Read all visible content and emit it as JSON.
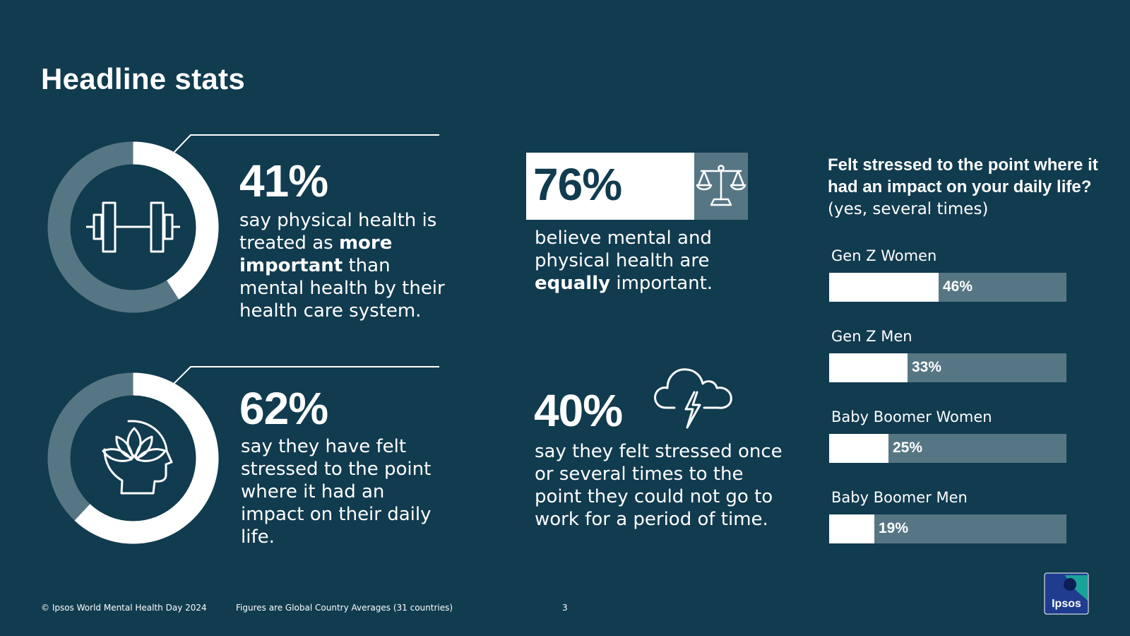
{
  "title": "Headline stats",
  "colors": {
    "background": "#113b4f",
    "accent": "#577684",
    "foreground": "#ffffff"
  },
  "stats": [
    {
      "value": "41%",
      "fraction": 0.41,
      "icon": "dumbbell-icon",
      "text_parts": [
        "say physical health is treated as ",
        "more important",
        " than mental health by their health care system."
      ]
    },
    {
      "value": "62%",
      "fraction": 0.62,
      "icon": "lotus-head-icon",
      "text_parts": [
        "say they have felt stressed to the point where it had an impact on their daily life."
      ]
    },
    {
      "value": "76%",
      "icon": "scales-icon",
      "text_parts": [
        "believe mental and physical health are ",
        "equally",
        " important."
      ]
    },
    {
      "value": "40%",
      "icon": "storm-cloud-icon",
      "text_parts": [
        "say they felt stressed once or several times to the point they could not go to work for a period of time."
      ]
    }
  ],
  "bar_chart": {
    "heading_bold": "Felt stressed to the point where it had an impact on your daily life?",
    "heading_light": "(yes, several times)"
  },
  "chart_data": [
    {
      "type": "pie",
      "categories": [
        "say physical health is treated as more important",
        "other"
      ],
      "values": [
        41,
        59
      ]
    },
    {
      "type": "pie",
      "categories": [
        "say they have felt stressed",
        "other"
      ],
      "values": [
        62,
        38
      ]
    },
    {
      "type": "bar",
      "title": "Felt stressed to the point where it had an impact on your daily life? (yes, several times)",
      "categories": [
        "Gen Z Women",
        "Gen Z Men",
        "Baby Boomer Women",
        "Baby Boomer Men"
      ],
      "values": [
        46,
        33,
        25,
        19
      ],
      "value_labels": [
        "46%",
        "33%",
        "25%",
        "19%"
      ],
      "ylim": [
        0,
        100
      ],
      "orientation": "horizontal",
      "grid": false
    }
  ],
  "footer": {
    "copyright": "© Ipsos World Mental Health Day 2024",
    "note": "Figures are Global Country Averages (31 countries)",
    "page": "3"
  },
  "logo": {
    "text": "Ipsos"
  }
}
